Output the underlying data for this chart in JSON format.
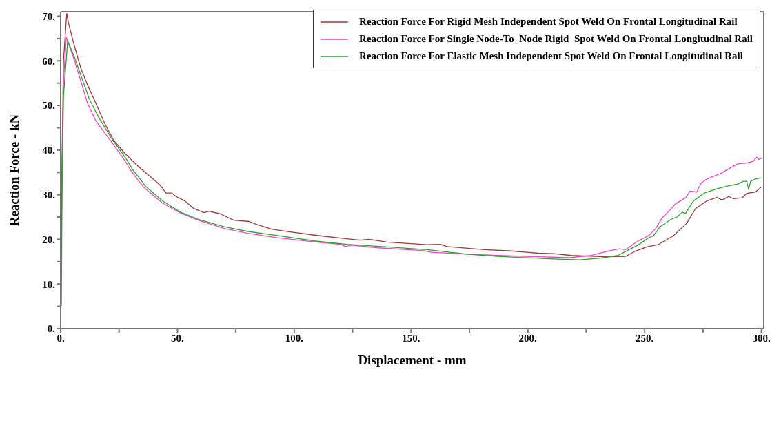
{
  "chart_data": {
    "type": "line",
    "xlabel": "Displacement - mm",
    "ylabel": "Reaction Force - kN",
    "xlim": [
      0,
      301
    ],
    "ylim": [
      0,
      71
    ],
    "xticks": [
      {
        "value": 0,
        "label": "0."
      },
      {
        "value": 25,
        "label": null
      },
      {
        "value": 50,
        "label": "50."
      },
      {
        "value": 75,
        "label": null
      },
      {
        "value": 100,
        "label": "100."
      },
      {
        "value": 125,
        "label": null
      },
      {
        "value": 150,
        "label": "150."
      },
      {
        "value": 175,
        "label": null
      },
      {
        "value": 200,
        "label": "200."
      },
      {
        "value": 225,
        "label": null
      },
      {
        "value": 250,
        "label": "250."
      },
      {
        "value": 275,
        "label": null
      },
      {
        "value": 300,
        "label": "300."
      }
    ],
    "yticks": [
      {
        "value": 0,
        "label": "0."
      },
      {
        "value": 5,
        "label": null
      },
      {
        "value": 10,
        "label": "10."
      },
      {
        "value": 15,
        "label": null
      },
      {
        "value": 20,
        "label": "20."
      },
      {
        "value": 25,
        "label": null
      },
      {
        "value": 30,
        "label": "30."
      },
      {
        "value": 35,
        "label": null
      },
      {
        "value": 40,
        "label": "40."
      },
      {
        "value": 45,
        "label": null
      },
      {
        "value": 50,
        "label": "50."
      },
      {
        "value": 55,
        "label": null
      },
      {
        "value": 60,
        "label": "60."
      },
      {
        "value": 65,
        "label": null
      },
      {
        "value": 70,
        "label": "70."
      }
    ],
    "grid": false,
    "legend": "top right",
    "marker": "none",
    "line_style": "solid",
    "series": [
      {
        "name": "Reaction Force For Rigid Mesh Independent Spot Weld On Frontal Longitudinal Rail",
        "color": "#983a3a",
        "x": [
          0.3,
          0.5,
          1.2,
          2.6,
          3.3,
          5.7,
          8.6,
          11.4,
          14.3,
          19,
          22.8,
          27.6,
          33.3,
          40.8,
          42.8,
          45.1,
          47.5,
          49.4,
          53.2,
          57,
          61.3,
          63.6,
          68.4,
          74.1,
          80.7,
          83.6,
          90.3,
          97.8,
          111,
          128.3,
          132,
          139.7,
          156.8,
          162.5,
          165.4,
          181.5,
          193,
          204.4,
          211,
          218.6,
          232.9,
          241.9,
          246.2,
          250.9,
          255.7,
          262.3,
          268,
          271.8,
          276.6,
          280.9,
          283.2,
          286,
          288,
          291.7,
          293.7,
          297.4,
          298.8,
          299.9
        ],
        "values": [
          12,
          35,
          60,
          70.6,
          68.6,
          63.7,
          58.4,
          54.7,
          51.4,
          45.8,
          42.1,
          39.2,
          36.3,
          33.0,
          32.0,
          30.4,
          30.4,
          29.6,
          28.6,
          26.9,
          26.0,
          26.3,
          25.7,
          24.3,
          24.0,
          23.4,
          22.3,
          21.7,
          20.8,
          19.8,
          20.0,
          19.4,
          18.8,
          18.9,
          18.4,
          17.7,
          17.4,
          16.9,
          16.8,
          16.4,
          16.1,
          16.2,
          17.4,
          18.3,
          18.8,
          20.8,
          23.6,
          26.9,
          28.6,
          29.4,
          28.8,
          29.6,
          29.1,
          29.3,
          30.3,
          30.6,
          31.2,
          31.7
        ]
      },
      {
        "name": "Reaction Force For Single Node-To_Node Rigid  Spot Weld On Frontal Longitudinal Rail",
        "color": "#f040c8",
        "x": [
          0.5,
          1.2,
          2.4,
          5.7,
          8.6,
          11.4,
          15.1,
          20.8,
          26.5,
          30,
          33.5,
          36.1,
          43.7,
          51.3,
          58.9,
          70.3,
          79.8,
          92.2,
          109.3,
          119.8,
          122.1,
          124.5,
          135.9,
          154.9,
          158.7,
          174,
          187.2,
          205.3,
          217.7,
          227.2,
          233.8,
          239,
          241.9,
          247.1,
          251.9,
          254.7,
          257.6,
          260.4,
          263.3,
          267.5,
          269.5,
          272.3,
          274.2,
          276.6,
          282.3,
          287,
          289.9,
          293.7,
          296.5,
          298,
          298.8,
          300.3
        ],
        "values": [
          30,
          55,
          65.3,
          60.4,
          55.5,
          50.6,
          46.5,
          42.5,
          38.4,
          35.5,
          33.0,
          31.4,
          28.1,
          25.9,
          24.3,
          22.4,
          21.4,
          20.4,
          19.4,
          18.9,
          18.4,
          18.7,
          18.1,
          17.5,
          17.1,
          16.7,
          16.4,
          16.1,
          15.9,
          16.4,
          17.3,
          17.9,
          17.7,
          19.6,
          20.9,
          22.4,
          24.9,
          26.3,
          28.0,
          29.3,
          30.8,
          30.6,
          32.6,
          33.5,
          34.7,
          36.1,
          36.9,
          37.1,
          37.5,
          38.4,
          37.9,
          38.2
        ]
      },
      {
        "name": "Reaction Force For Elastic Mesh Independent Spot Weld On Frontal Longitudinal Rail",
        "color": "#2f9e2f",
        "x": [
          0.3,
          0.6,
          1.2,
          3.0,
          6.2,
          9.5,
          12.3,
          16.2,
          21.9,
          27.6,
          31,
          34.5,
          36.1,
          43.7,
          51.3,
          58.9,
          70.3,
          79.8,
          92.2,
          109.3,
          122.6,
          139.7,
          156.8,
          174,
          187.2,
          211,
          222.4,
          231,
          238.6,
          243.3,
          247.1,
          251.9,
          253.8,
          256.6,
          261.4,
          264.2,
          266.1,
          267.5,
          270.9,
          275.6,
          281.4,
          286.1,
          289.9,
          292.3,
          293.7,
          294.5,
          295.4,
          297.4,
          299.9
        ],
        "values": [
          5,
          30,
          52,
          64.5,
          60.4,
          55.5,
          51.4,
          47.4,
          42.5,
          38.4,
          35.5,
          33.2,
          32.0,
          28.6,
          26.1,
          24.5,
          22.8,
          21.8,
          20.9,
          19.6,
          18.9,
          18.3,
          17.7,
          16.7,
          16.2,
          15.6,
          15.4,
          15.8,
          16.4,
          17.7,
          18.7,
          20.4,
          20.8,
          22.8,
          24.5,
          25.1,
          26.1,
          25.8,
          28.6,
          30.4,
          31.4,
          32.0,
          32.4,
          33.0,
          33.0,
          31.2,
          33.0,
          33.5,
          33.8
        ]
      }
    ]
  }
}
